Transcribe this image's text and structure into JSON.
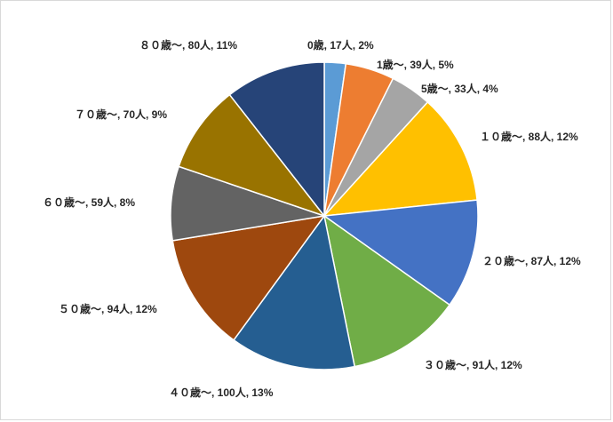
{
  "chart_data": {
    "type": "pie",
    "title": "",
    "categories": [
      "0歳",
      "1歳～",
      "5歳～",
      "１０歳～",
      "２０歳～",
      "３０歳～",
      "４０歳～",
      "５０歳～",
      "６０歳～",
      "７０歳～",
      "８０歳～"
    ],
    "values": [
      17,
      39,
      33,
      88,
      87,
      91,
      100,
      94,
      59,
      70,
      80
    ],
    "colors": [
      "#5b9bd5",
      "#ed7d31",
      "#a5a5a5",
      "#ffc000",
      "#4472c4",
      "#70ad47",
      "#255e91",
      "#9e480e",
      "#636363",
      "#997300",
      "#264478"
    ],
    "labels": [
      "0歳, 17人, 2%",
      "1歳～, 39人, 5%",
      "5歳～, 33人, 4%",
      "１０歳～, 88人, 12%",
      "２０歳～, 87人, 12%",
      "３０歳～, 91人, 12%",
      "４０歳～, 100人, 13%",
      "５０歳～, 94人, 12%",
      "６０歳～, 59人, 8%",
      "７０歳～, 70人, 9%",
      "８０歳～, 80人, 11%"
    ],
    "start_angle": "12 o'clock",
    "direction": "clockwise",
    "legend": "none"
  }
}
